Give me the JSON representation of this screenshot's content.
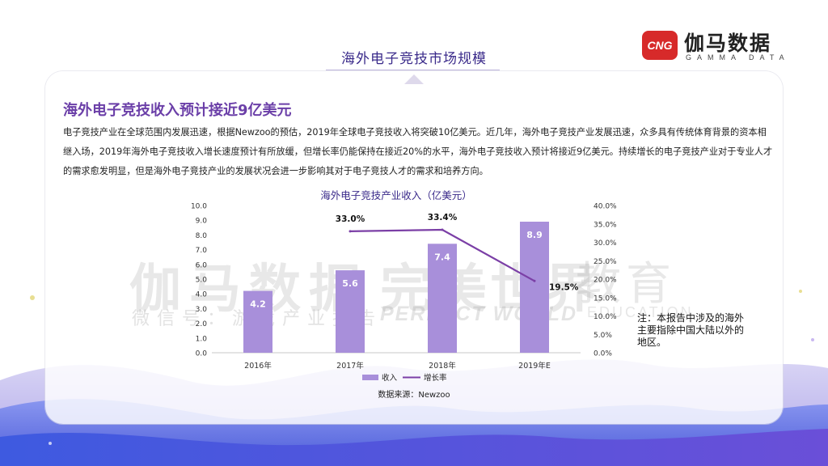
{
  "slide": {
    "title": "海外电子竞技市场规模",
    "headline": "海外电子竞技收入预计接近9亿美元",
    "body": "电子竞技产业在全球范围内发展迅速，根据Newzoo的预估，2019年全球电子竞技收入将突破10亿美元。近几年，海外电子竞技产业发展迅速，众多具有传统体育背景的资本相继入场，2019年海外电子竞技收入增长速度预计有所放缓，但增长率仍能保持在接近20%的水平，海外电子竞技收入预计将接近9亿美元。持续增长的电子竞技产业对于专业人才的需求愈发明显，但是海外电子竞技产业的发展状况会进一步影响其对于电子竞技人才的需求和培养方向。",
    "note": "注：本报告中涉及的海外主要指除中国大陆以外的地区。"
  },
  "logo": {
    "mark": "CNG",
    "name": "伽马数据",
    "sub": "GAMMA DATA"
  },
  "watermark": {
    "main": "伽马数据",
    "sub": "微信号：游戏产业报告",
    "brand": "完美世界",
    "brand_en": "PERFECT WORLD",
    "edu": "教育",
    "edu_en": "EDUCATION"
  },
  "chart_data": {
    "type": "bar",
    "title": "海外电子竞技产业收入（亿美元）",
    "categories": [
      "2016年",
      "2017年",
      "2018年",
      "2019年E"
    ],
    "series": [
      {
        "name": "收入",
        "kind": "bar",
        "axis": "left",
        "values": [
          4.2,
          5.6,
          7.4,
          8.9
        ],
        "labels": [
          "4.2",
          "5.6",
          "7.4",
          "8.9"
        ],
        "color": "#a88fda"
      },
      {
        "name": "增长率",
        "kind": "line",
        "axis": "right",
        "values": [
          null,
          33.0,
          33.4,
          19.5
        ],
        "labels": [
          "",
          "33.0%",
          "33.4%",
          "19.5%"
        ],
        "color": "#7b3fa6"
      }
    ],
    "y_left": {
      "min": 0,
      "max": 10,
      "ticks": [
        "0.0",
        "1.0",
        "2.0",
        "3.0",
        "4.0",
        "5.0",
        "6.0",
        "7.0",
        "8.0",
        "9.0",
        "10.0"
      ]
    },
    "y_right": {
      "min": 0,
      "max": 40,
      "ticks": [
        "0.0%",
        "5.0%",
        "10.0%",
        "15.0%",
        "20.0%",
        "25.0%",
        "30.0%",
        "35.0%",
        "40.0%"
      ]
    },
    "source": "数据来源：Newzoo",
    "legend_position": "bottom"
  },
  "colors": {
    "accent": "#6b3fa8",
    "title": "#3a2a8a",
    "bar": "#a88fda",
    "line": "#7b3fa6",
    "brand_red": "#d72a2a"
  }
}
